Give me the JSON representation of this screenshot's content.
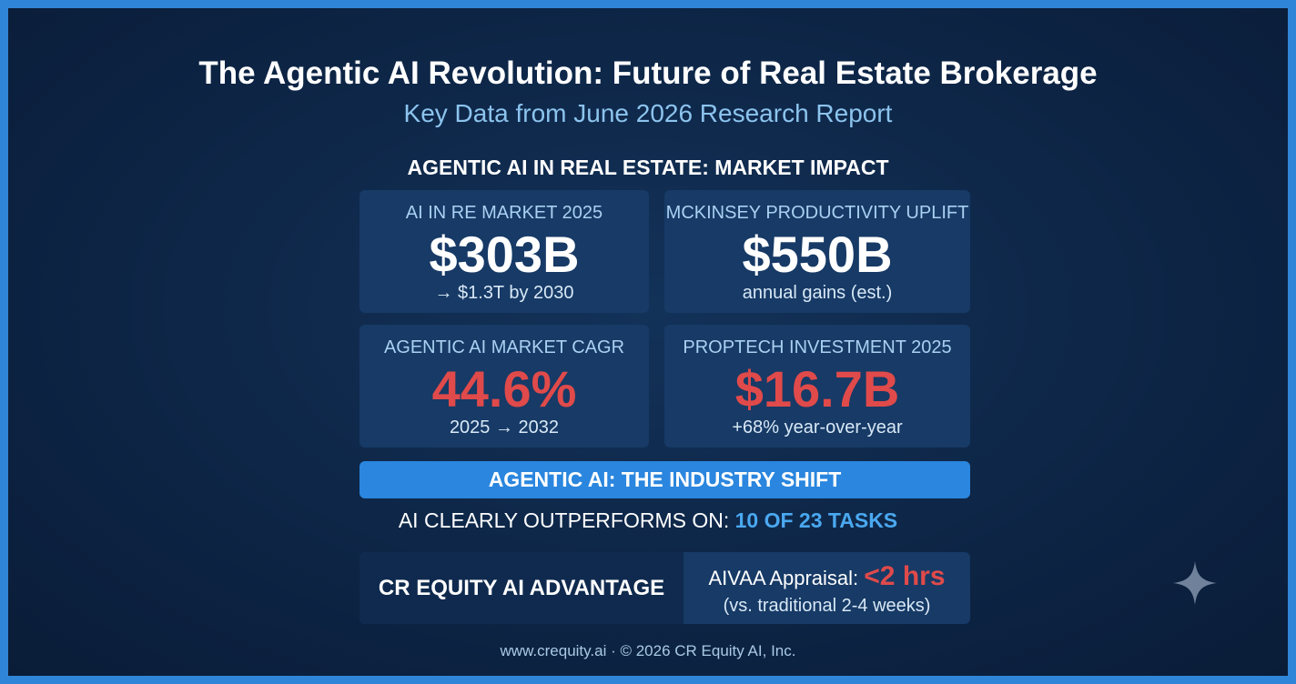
{
  "header": {
    "title": "The Agentic AI Revolution: Future of Real Estate Brokerage",
    "subtitle": "Key Data from June 2026 Research Report"
  },
  "section_title": "AGENTIC AI IN REAL ESTATE: MARKET IMPACT",
  "cards": [
    {
      "label": "AI IN RE MARKET 2025",
      "value": "$303B",
      "note": "→ $1.3T by 2030"
    },
    {
      "label": "MCKINSEY PRODUCTIVITY UPLIFT",
      "value": "$550B",
      "note": "annual gains (est.)"
    },
    {
      "label": "AGENTIC AI MARKET CAGR",
      "value": "44.6%",
      "note": "2025 → 2032"
    },
    {
      "label": "PROPTECH INVESTMENT 2025",
      "value": "$16.7B",
      "note": "+68% year-over-year"
    }
  ],
  "banner": "AGENTIC AI: THE INDUSTRY SHIFT",
  "outperform": {
    "text": "AI CLEARLY OUTPERFORMS ON: ",
    "highlight": "10 OF 23 TASKS"
  },
  "advantage": {
    "label": "CR EQUITY AI ADVANTAGE",
    "metric_label": "AIVAA Appraisal: ",
    "metric_value": "<2 hrs",
    "note": "(vs. traditional 2-4 weeks)"
  },
  "footer": "www.crequity.ai · © 2026 CR Equity AI, Inc."
}
